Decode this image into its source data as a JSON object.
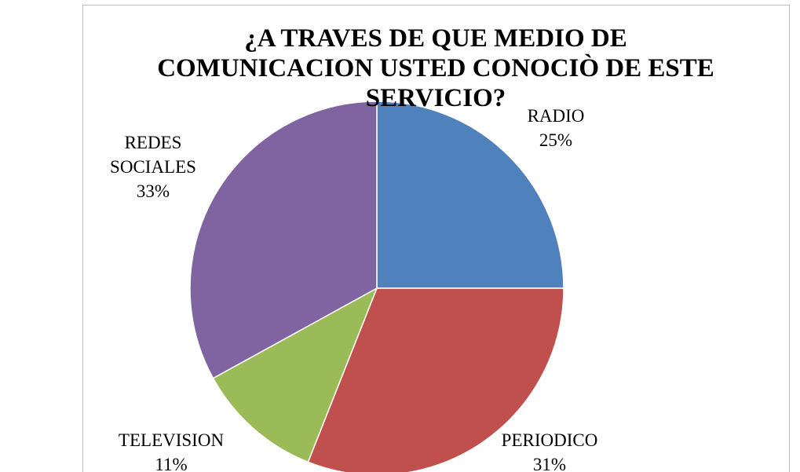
{
  "chart_data": {
    "type": "pie",
    "title": "¿A TRAVES DE QUE MEDIO DE COMUNICACION USTED CONOCIÒ DE ESTE SERVICIO?",
    "categories": [
      "RADIO",
      "PERIODICO",
      "TELEVISION",
      "REDES SOCIALES"
    ],
    "values": [
      25,
      31,
      11,
      33
    ],
    "value_labels": [
      "25%",
      "31%",
      "11%",
      "33%"
    ],
    "colors": [
      "#4f81bd",
      "#c0504d",
      "#9bbb59",
      "#8064a2"
    ]
  }
}
